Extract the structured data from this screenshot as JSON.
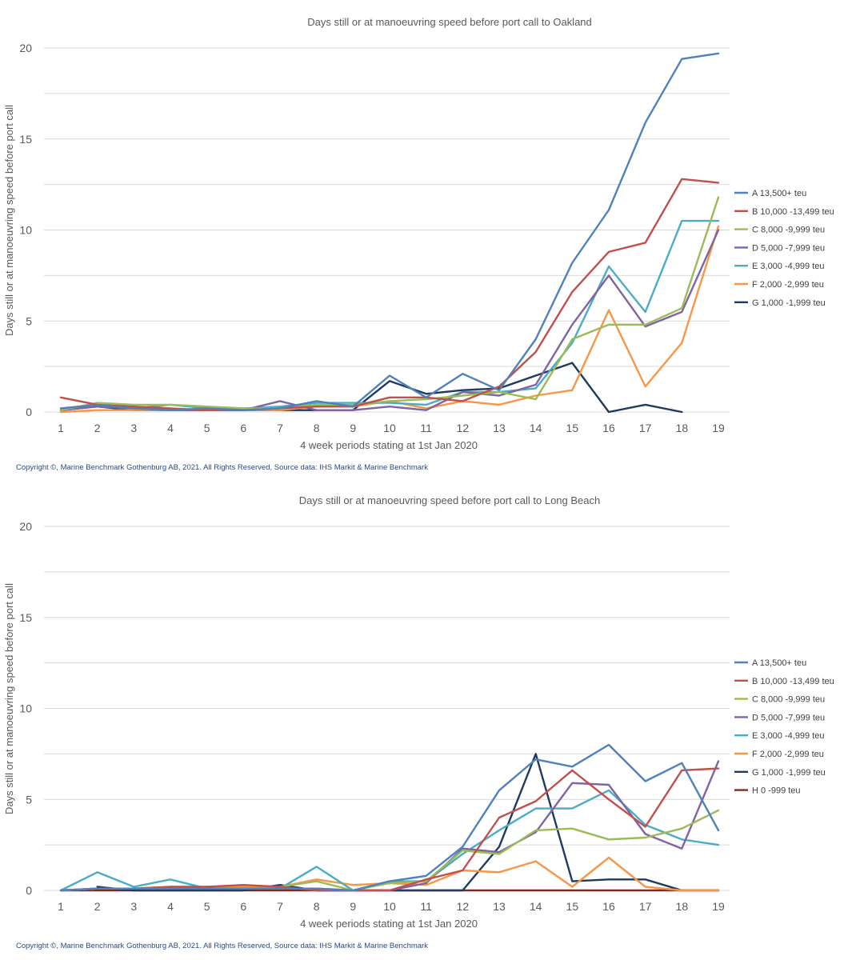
{
  "chart_data": [
    {
      "type": "line",
      "title": "Days still or at manoeuvring speed before port call to Oakland",
      "xlabel": "4 week periods stating at 1st Jan 2020",
      "ylabel": "Days still or at manoeuvring speed before port call",
      "ylim": [
        0,
        20
      ],
      "yticks": [
        0,
        5,
        10,
        15,
        20
      ],
      "categories": [
        "1",
        "2",
        "3",
        "4",
        "5",
        "6",
        "7",
        "8",
        "9",
        "10",
        "11",
        "12",
        "13",
        "14",
        "15",
        "16",
        "17",
        "18",
        "19"
      ],
      "grid": true,
      "legend": "right",
      "copyright": "Copyright ©, Marine Benchmark Gothenburg AB, 2021. All Rights Reserved, Source data: IHS Markit & Marine Benchmark",
      "series": [
        {
          "name": "A 13,500+ teu",
          "color": "#4f81bd",
          "values": [
            0.2,
            0.4,
            0.2,
            0.1,
            0.2,
            0.1,
            0.2,
            0.6,
            0.3,
            2.0,
            0.8,
            2.1,
            1.2,
            4.0,
            8.2,
            11.1,
            15.9,
            19.4,
            19.7
          ]
        },
        {
          "name": "B 10,000 -13,499 teu",
          "color": "#c0504d",
          "values": [
            0.8,
            0.4,
            0.3,
            0.2,
            0.1,
            0.1,
            0.2,
            0.3,
            0.3,
            0.8,
            0.8,
            0.6,
            1.4,
            3.3,
            6.6,
            8.8,
            9.3,
            12.8,
            12.6
          ]
        },
        {
          "name": "C 8,000 -9,999 teu",
          "color": "#9bbb59",
          "values": [
            0.1,
            0.5,
            0.4,
            0.4,
            0.3,
            0.2,
            0.2,
            0.4,
            0.4,
            0.6,
            0.7,
            0.9,
            1.1,
            0.7,
            4.0,
            4.8,
            4.8,
            5.7,
            11.8
          ]
        },
        {
          "name": "D 5,000 -7,999 teu",
          "color": "#8064a2",
          "values": [
            0.1,
            0.3,
            0.2,
            0.1,
            0.1,
            0.1,
            0.6,
            0.1,
            0.1,
            0.3,
            0.1,
            1.1,
            0.9,
            1.5,
            4.8,
            7.5,
            4.7,
            5.5,
            10.0
          ]
        },
        {
          "name": "E 3,000 -4,999 teu",
          "color": "#4bacc6",
          "values": [
            0.2,
            0.3,
            0.2,
            0.4,
            0.2,
            0.2,
            0.3,
            0.5,
            0.5,
            0.5,
            0.4,
            1.1,
            1.1,
            1.3,
            3.8,
            8.0,
            5.5,
            10.5,
            10.5
          ]
        },
        {
          "name": "F 2,000 -2,999 teu",
          "color": "#f79646",
          "values": [
            0.0,
            0.1,
            0.1,
            0.1,
            0.1,
            0.1,
            0.1,
            0.3,
            0.3,
            0.6,
            0.2,
            0.6,
            0.4,
            0.9,
            1.2,
            5.6,
            1.4,
            3.8,
            10.2
          ]
        },
        {
          "name": "G 1,000 -1,999 teu",
          "color": "#1f3a5f",
          "values": [
            0.1,
            0.3,
            0.1,
            0.1,
            0.1,
            0.1,
            0.1,
            0.1,
            0.1,
            1.7,
            1.0,
            1.2,
            1.3,
            2.0,
            2.7,
            0.0,
            0.4,
            0.0,
            null
          ]
        }
      ]
    },
    {
      "type": "line",
      "title": "Days still or at manoeuvring speed before port call to Long Beach",
      "xlabel": "4 week periods stating at 1st Jan 2020",
      "ylabel": "Days still or at manoeuvring speed before port call",
      "ylim": [
        0,
        20
      ],
      "yticks": [
        0,
        5,
        10,
        15,
        20
      ],
      "categories": [
        "1",
        "2",
        "3",
        "4",
        "5",
        "6",
        "7",
        "8",
        "9",
        "10",
        "11",
        "12",
        "13",
        "14",
        "15",
        "16",
        "17",
        "18",
        "19"
      ],
      "grid": true,
      "legend": "right",
      "copyright": "Copyright ©, Marine Benchmark Gothenburg AB, 2021. All Rights Reserved, Source data: IHS Markit & Marine Benchmark",
      "series": [
        {
          "name": "A 13,500+ teu",
          "color": "#4f81bd",
          "values": [
            0.0,
            0.1,
            0.1,
            0.1,
            0.1,
            0.1,
            0.1,
            0.1,
            0.0,
            0.5,
            0.8,
            2.4,
            5.5,
            7.2,
            6.8,
            8.0,
            6.0,
            7.0,
            3.3
          ]
        },
        {
          "name": "B 10,000 -13,499 teu",
          "color": "#c0504d",
          "values": [
            0.0,
            0.1,
            0.1,
            0.2,
            0.2,
            0.3,
            0.2,
            0.0,
            0.0,
            0.0,
            0.6,
            1.1,
            4.0,
            4.9,
            6.6,
            5.0,
            3.5,
            6.6,
            6.7
          ]
        },
        {
          "name": "C 8,000 -9,999 teu",
          "color": "#9bbb59",
          "values": [
            0.0,
            0.1,
            0.1,
            0.1,
            0.2,
            0.1,
            0.2,
            0.5,
            0.0,
            0.4,
            0.5,
            2.2,
            2.0,
            3.3,
            3.4,
            2.8,
            2.9,
            3.4,
            4.4
          ]
        },
        {
          "name": "D 5,000 -7,999 teu",
          "color": "#8064a2",
          "values": [
            0.0,
            0.1,
            0.1,
            0.1,
            0.1,
            0.1,
            0.1,
            0.1,
            0.0,
            0.0,
            0.4,
            2.3,
            2.1,
            3.2,
            5.9,
            5.8,
            3.1,
            2.3,
            7.1
          ]
        },
        {
          "name": "E 3,000 -4,999 teu",
          "color": "#4bacc6",
          "values": [
            0.0,
            1.0,
            0.2,
            0.6,
            0.1,
            0.1,
            0.1,
            1.3,
            0.0,
            0.5,
            0.5,
            2.0,
            3.3,
            4.5,
            4.5,
            5.5,
            3.6,
            2.8,
            2.5
          ]
        },
        {
          "name": "F 2,000 -2,999 teu",
          "color": "#f79646",
          "values": [
            0.0,
            0.1,
            0.1,
            0.2,
            0.2,
            0.2,
            0.2,
            0.6,
            0.3,
            0.4,
            0.3,
            1.1,
            1.0,
            1.6,
            0.2,
            1.8,
            0.2,
            0.0,
            0.0
          ]
        },
        {
          "name": "G 1,000 -1,999 teu",
          "color": "#1f3a5f",
          "values": [
            null,
            0.2,
            0.0,
            0.0,
            0.0,
            0.0,
            0.3,
            0.0,
            0.0,
            0.0,
            0.0,
            0.0,
            2.4,
            7.5,
            0.5,
            0.6,
            0.6,
            0.0,
            0.0
          ]
        },
        {
          "name": "H 0 -999 teu",
          "color": "#7b2a22",
          "values": [
            0.0,
            0.0,
            0.0,
            0.0,
            0.0,
            0.0,
            0.0,
            0.0,
            0.0,
            0.0,
            0.0,
            0.0,
            0.0,
            0.0,
            0.0,
            0.0,
            0.0,
            0.0,
            0.0
          ]
        }
      ]
    }
  ]
}
